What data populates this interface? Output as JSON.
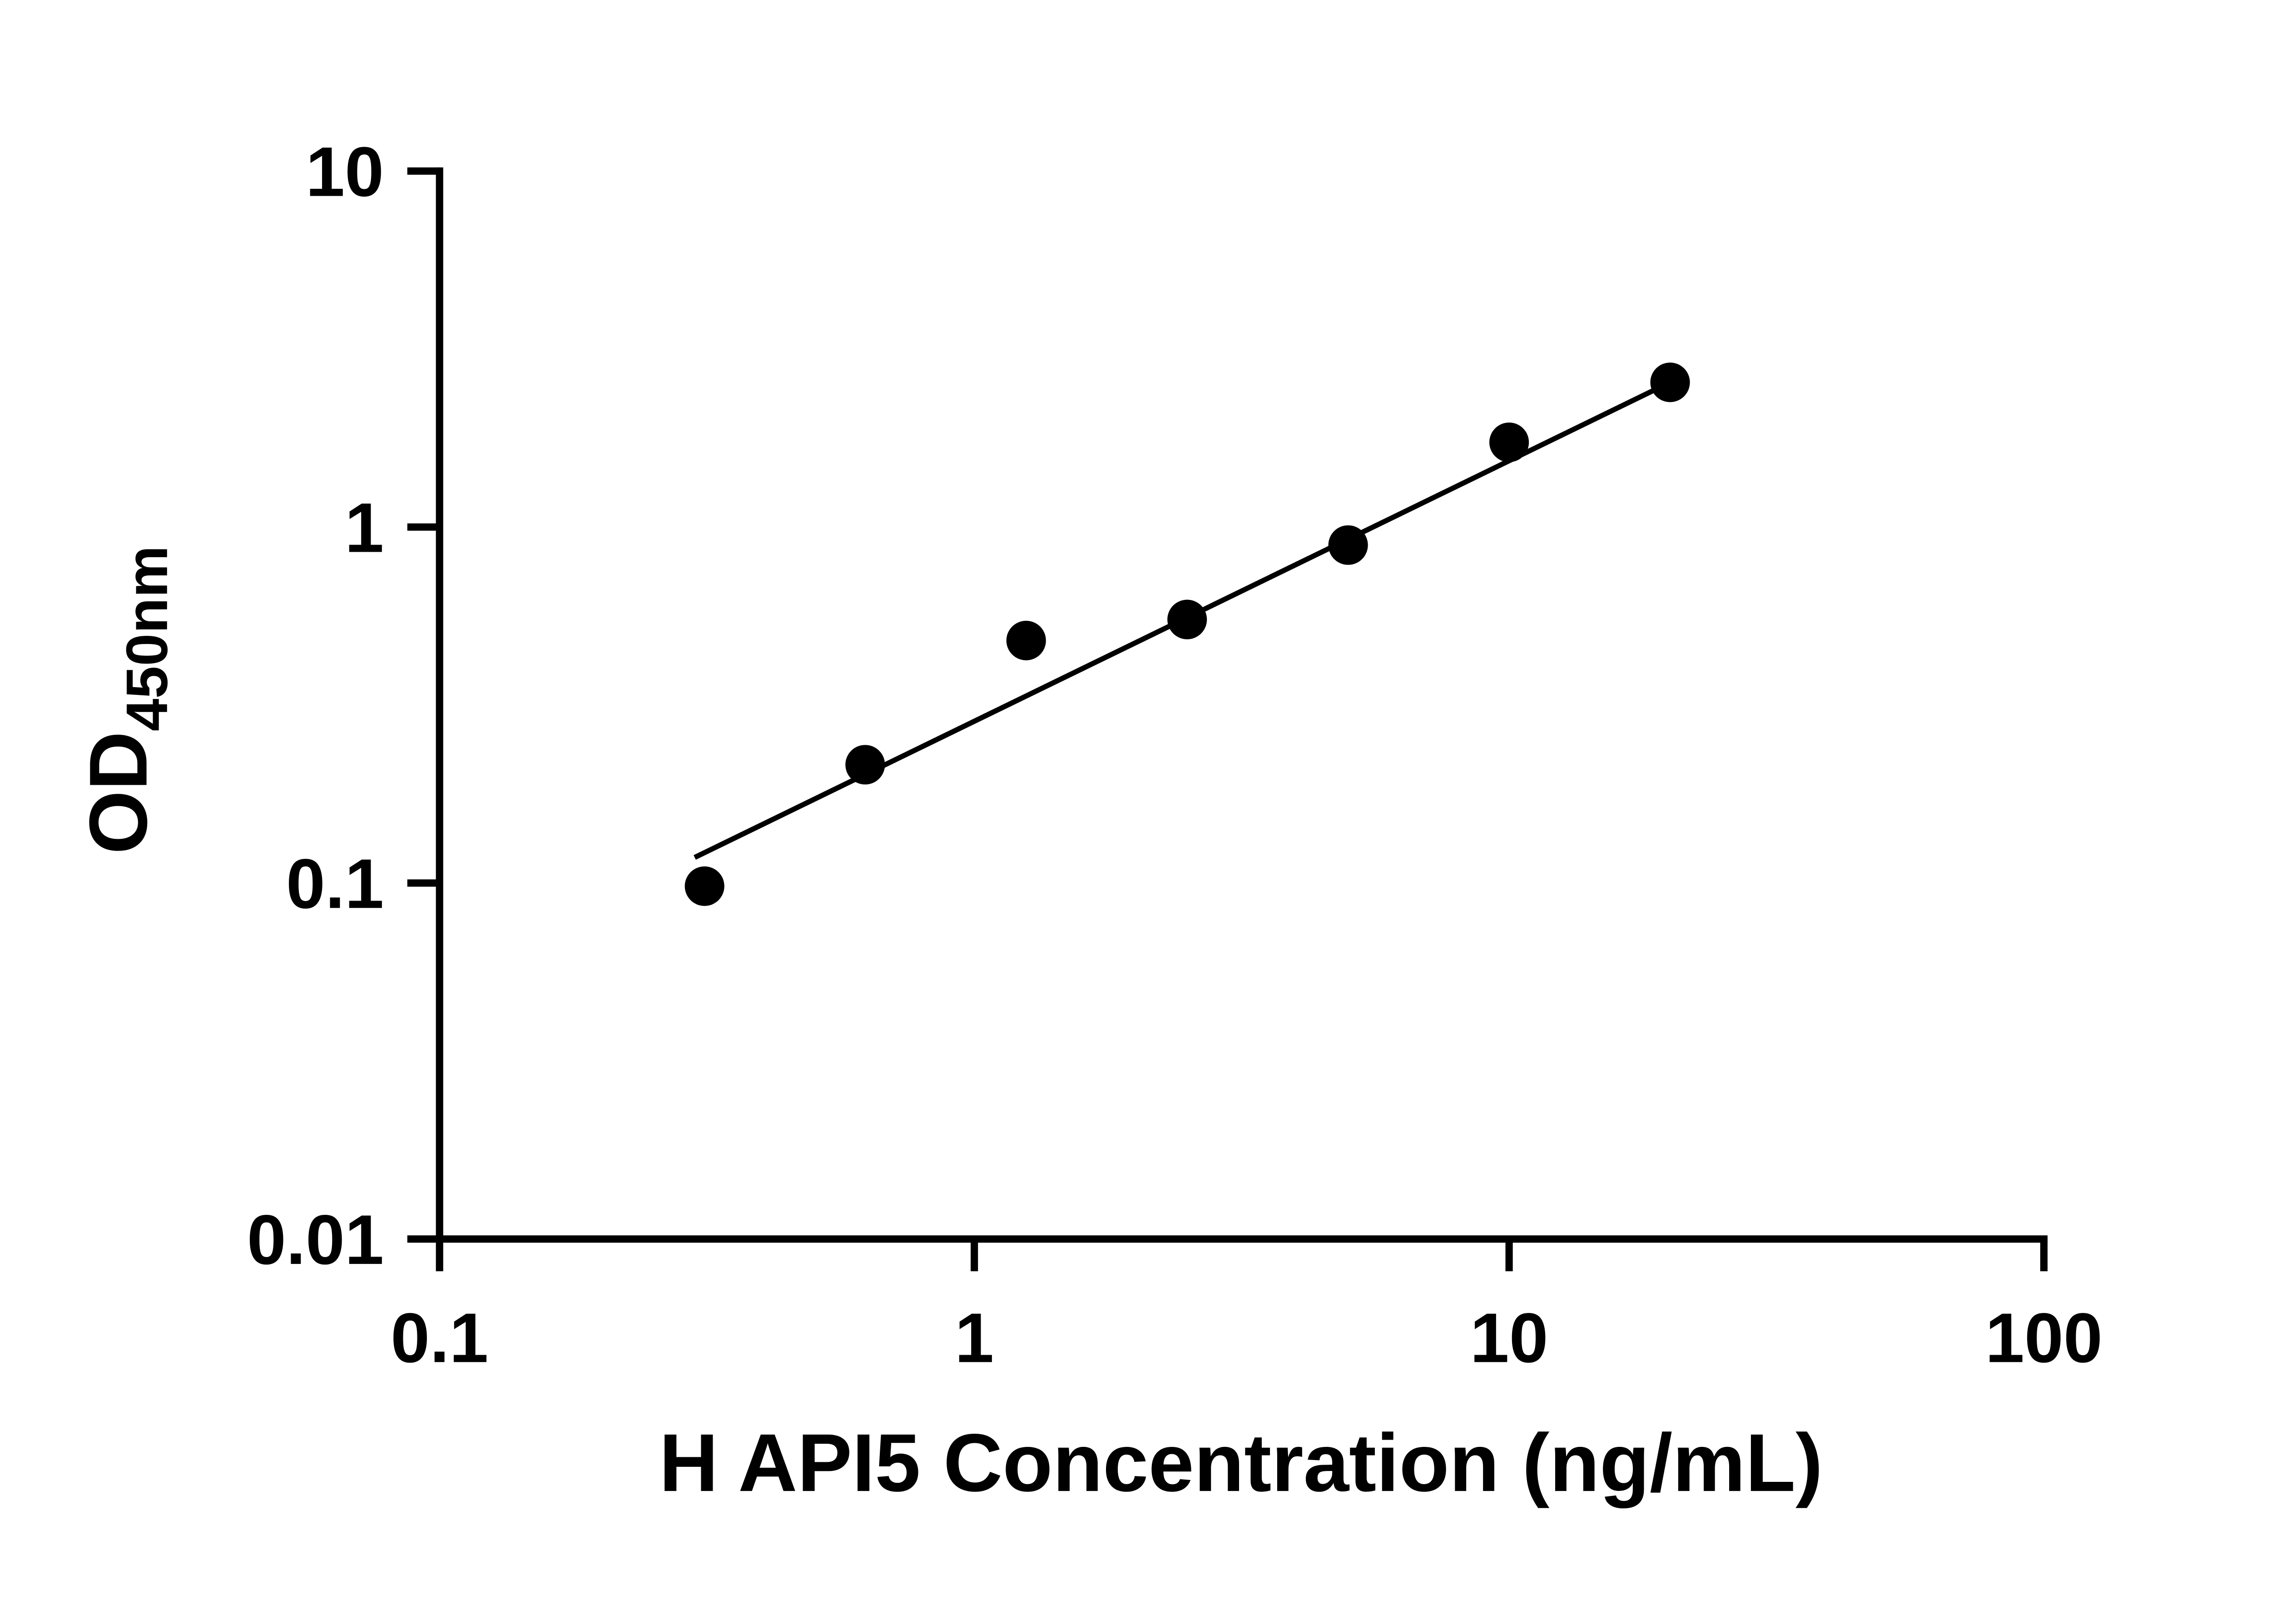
{
  "chart_data": {
    "type": "scatter",
    "title": "",
    "xlabel": "H API5 Concentration (ng/mL)",
    "ylabel": "OD",
    "ylabel_subscript": "450nm",
    "x_scale": "log",
    "y_scale": "log",
    "xlim": [
      0.1,
      100
    ],
    "ylim": [
      0.01,
      10
    ],
    "x_ticks": [
      0.1,
      1,
      10,
      100
    ],
    "x_tick_labels": [
      "0.1",
      "1",
      "10",
      "100"
    ],
    "y_ticks": [
      0.01,
      0.1,
      1,
      10
    ],
    "y_tick_labels": [
      "0.01",
      "0.1",
      "1",
      "10"
    ],
    "grid": false,
    "legend": false,
    "marker": "filled-circle",
    "colors": {
      "marker": "#000000",
      "line": "#000000",
      "axis": "#000000",
      "background": "#ffffff"
    },
    "series": [
      {
        "name": "standard-curve-points",
        "points": [
          [
            0.313,
            0.098
          ],
          [
            0.625,
            0.215
          ],
          [
            1.25,
            0.48
          ],
          [
            2.5,
            0.55
          ],
          [
            5,
            0.89
          ],
          [
            10,
            1.73
          ],
          [
            20,
            2.55
          ]
        ]
      }
    ],
    "fit_line": {
      "points": [
        [
          0.3,
          0.118
        ],
        [
          20,
          2.55
        ]
      ]
    }
  }
}
